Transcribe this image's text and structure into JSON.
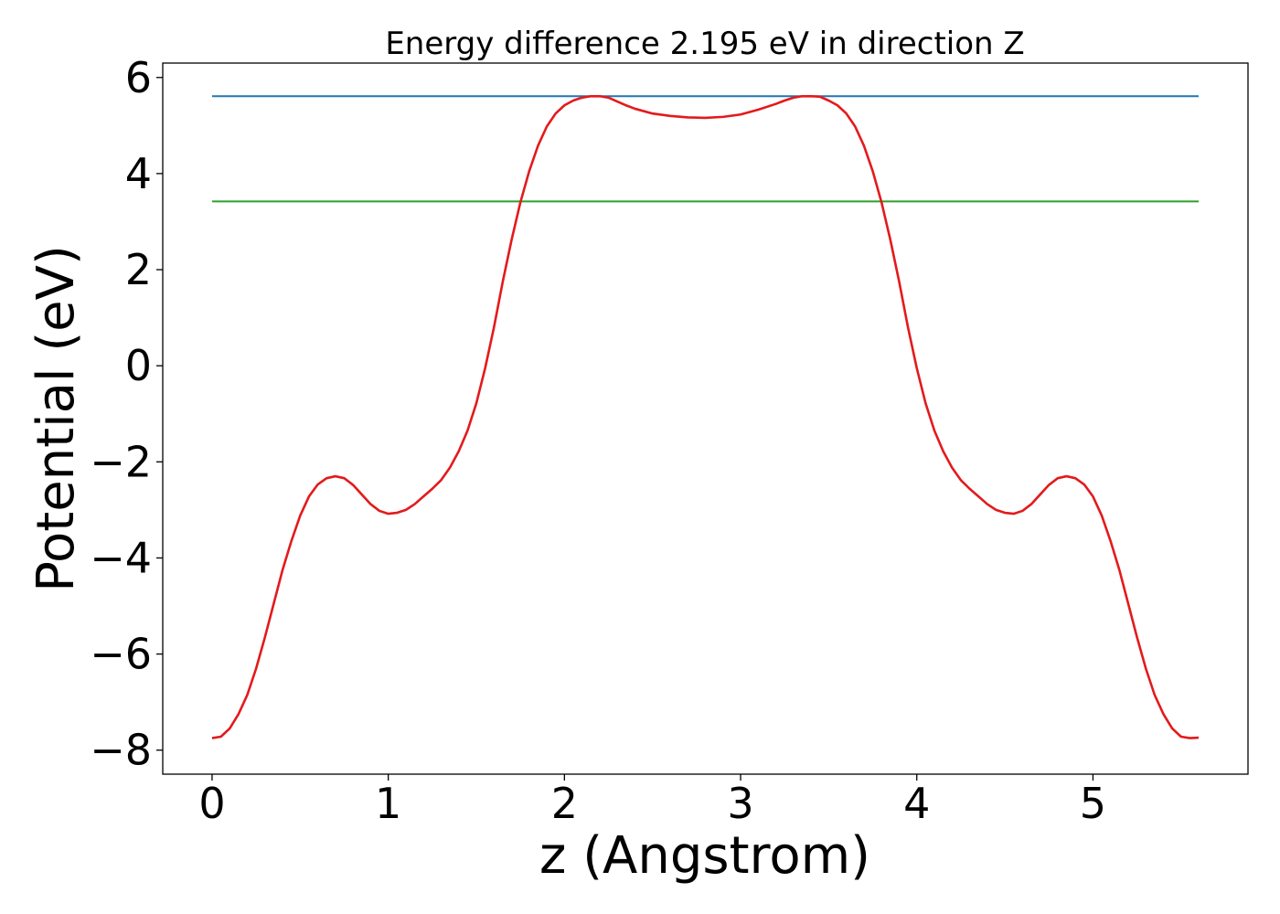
{
  "chart_data": {
    "type": "line",
    "title": "Energy difference 2.195 eV in direction Z",
    "xlabel": "z (Angstrom)",
    "ylabel": "Potential (eV)",
    "xlim": [
      -0.28,
      5.88
    ],
    "ylim": [
      -8.5,
      6.3
    ],
    "xticks": [
      0,
      1,
      2,
      3,
      4,
      5
    ],
    "xtick_labels": [
      "0",
      "1",
      "2",
      "3",
      "4",
      "5"
    ],
    "yticks": [
      -8,
      -6,
      -4,
      -2,
      0,
      2,
      4,
      6
    ],
    "ytick_labels": [
      "−8",
      "−6",
      "−4",
      "−2",
      "0",
      "2",
      "4",
      "6"
    ],
    "grid": false,
    "series": [
      {
        "color": "#1f77b4",
        "style": "hline",
        "x": [
          0,
          5.6
        ],
        "y": [
          5.61,
          5.61
        ]
      },
      {
        "color": "#2ca02c",
        "style": "hline",
        "x": [
          0,
          5.6
        ],
        "y": [
          3.42,
          3.42
        ]
      },
      {
        "color": "#e31a1c",
        "style": "curve",
        "x": [
          0.0,
          0.05,
          0.1,
          0.15,
          0.2,
          0.25,
          0.3,
          0.35,
          0.4,
          0.45,
          0.5,
          0.55,
          0.6,
          0.65,
          0.7,
          0.75,
          0.8,
          0.85,
          0.9,
          0.95,
          1.0,
          1.05,
          1.1,
          1.15,
          1.2,
          1.25,
          1.3,
          1.35,
          1.4,
          1.45,
          1.5,
          1.55,
          1.6,
          1.65,
          1.7,
          1.75,
          1.8,
          1.85,
          1.9,
          1.95,
          2.0,
          2.05,
          2.1,
          2.15,
          2.2,
          2.25,
          2.3,
          2.35,
          2.4,
          2.5,
          2.6,
          2.7,
          2.8,
          2.9,
          3.0,
          3.1,
          3.2,
          3.25,
          3.3,
          3.35,
          3.4,
          3.45,
          3.5,
          3.55,
          3.6,
          3.65,
          3.7,
          3.75,
          3.8,
          3.85,
          3.9,
          3.95,
          4.0,
          4.05,
          4.1,
          4.15,
          4.2,
          4.25,
          4.3,
          4.35,
          4.4,
          4.45,
          4.5,
          4.55,
          4.6,
          4.65,
          4.7,
          4.75,
          4.8,
          4.85,
          4.9,
          4.95,
          5.0,
          5.05,
          5.1,
          5.15,
          5.2,
          5.25,
          5.3,
          5.35,
          5.4,
          5.45,
          5.5,
          5.55,
          5.6
        ],
        "y": [
          -7.75,
          -7.72,
          -7.55,
          -7.25,
          -6.85,
          -6.3,
          -5.65,
          -4.95,
          -4.25,
          -3.65,
          -3.12,
          -2.72,
          -2.47,
          -2.34,
          -2.3,
          -2.34,
          -2.48,
          -2.68,
          -2.88,
          -3.02,
          -3.08,
          -3.06,
          -3.0,
          -2.88,
          -2.72,
          -2.56,
          -2.38,
          -2.12,
          -1.78,
          -1.35,
          -0.78,
          -0.05,
          0.8,
          1.75,
          2.62,
          3.4,
          4.05,
          4.58,
          4.98,
          5.25,
          5.42,
          5.52,
          5.58,
          5.61,
          5.61,
          5.58,
          5.5,
          5.42,
          5.35,
          5.25,
          5.2,
          5.17,
          5.16,
          5.18,
          5.23,
          5.33,
          5.45,
          5.52,
          5.58,
          5.61,
          5.61,
          5.6,
          5.52,
          5.42,
          5.25,
          4.98,
          4.58,
          4.05,
          3.4,
          2.62,
          1.75,
          0.8,
          -0.05,
          -0.78,
          -1.35,
          -1.78,
          -2.12,
          -2.38,
          -2.56,
          -2.72,
          -2.88,
          -3.0,
          -3.06,
          -3.08,
          -3.02,
          -2.88,
          -2.68,
          -2.48,
          -2.34,
          -2.3,
          -2.34,
          -2.47,
          -2.72,
          -3.12,
          -3.65,
          -4.25,
          -4.95,
          -5.65,
          -6.3,
          -6.85,
          -7.25,
          -7.55,
          -7.72,
          -7.75,
          -7.74
        ]
      }
    ]
  }
}
